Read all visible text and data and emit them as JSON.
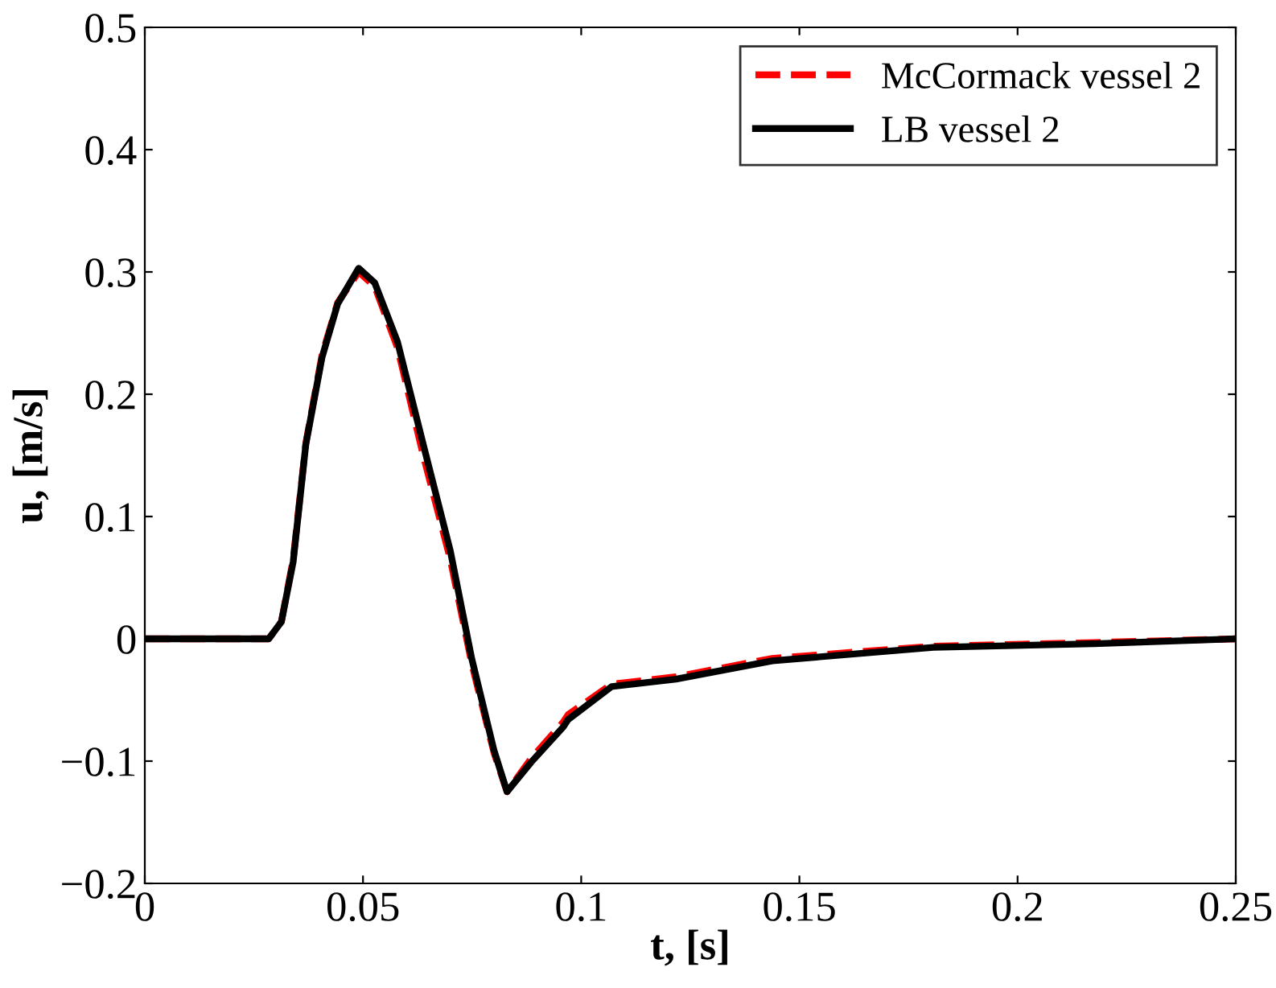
{
  "chart_data": {
    "type": "line",
    "xlabel": "t, [s]",
    "ylabel": "u, [m/s]",
    "xlim": [
      0,
      0.25
    ],
    "ylim": [
      -0.2,
      0.5
    ],
    "xticks": [
      0,
      0.05,
      0.1,
      0.15,
      0.2,
      0.25
    ],
    "yticks": [
      -0.2,
      -0.1,
      0,
      0.1,
      0.2,
      0.3,
      0.4,
      0.5
    ],
    "grid": false,
    "legend": "top right",
    "marker": "none",
    "series": [
      {
        "name": "McCormack vessel 2",
        "color": "#ff0000",
        "line_style": "dashed",
        "x": [
          0,
          0.0284,
          0.0313,
          0.034,
          0.0369,
          0.0406,
          0.0442,
          0.049,
          0.0527,
          0.0579,
          0.0638,
          0.07,
          0.0749,
          0.08,
          0.083,
          0.0885,
          0.0959,
          0.097,
          0.107,
          0.1217,
          0.1438,
          0.1807,
          0.2175,
          0.25
        ],
        "values": [
          0,
          0,
          0.014,
          0.065,
          0.16,
          0.232,
          0.275,
          0.3,
          0.288,
          0.238,
          0.15,
          0.065,
          -0.02,
          -0.093,
          -0.125,
          -0.098,
          -0.068,
          -0.062,
          -0.037,
          -0.031,
          -0.016,
          -0.006,
          -0.003,
          0
        ]
      },
      {
        "name": "LB vessel 2",
        "color": "#000000",
        "line_style": "solid",
        "x": [
          0,
          0.0284,
          0.0313,
          0.034,
          0.0369,
          0.0406,
          0.0442,
          0.049,
          0.0527,
          0.0579,
          0.0638,
          0.07,
          0.0749,
          0.08,
          0.083,
          0.0885,
          0.0959,
          0.097,
          0.107,
          0.1217,
          0.1438,
          0.1807,
          0.2175,
          0.25
        ],
        "values": [
          0,
          0,
          0.014,
          0.063,
          0.159,
          0.23,
          0.274,
          0.303,
          0.291,
          0.243,
          0.159,
          0.072,
          -0.016,
          -0.091,
          -0.125,
          -0.101,
          -0.072,
          -0.066,
          -0.039,
          -0.033,
          -0.018,
          -0.007,
          -0.004,
          0
        ]
      }
    ]
  }
}
